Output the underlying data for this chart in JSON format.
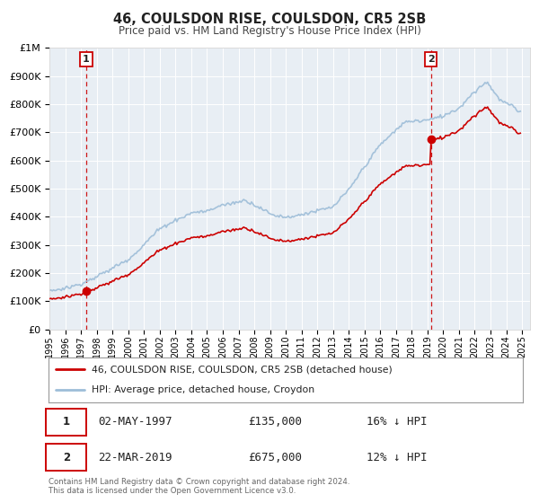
{
  "title": "46, COULSDON RISE, COULSDON, CR5 2SB",
  "subtitle": "Price paid vs. HM Land Registry's House Price Index (HPI)",
  "legend_line1": "46, COULSDON RISE, COULSDON, CR5 2SB (detached house)",
  "legend_line2": "HPI: Average price, detached house, Croydon",
  "sale1_label": "1",
  "sale1_date": "02-MAY-1997",
  "sale1_price": 135000,
  "sale1_hpi_text": "16% ↓ HPI",
  "sale1_year": 1997.33,
  "sale2_label": "2",
  "sale2_date": "22-MAR-2019",
  "sale2_price": 675000,
  "sale2_hpi_text": "12% ↓ HPI",
  "sale2_year": 2019.22,
  "footnote1": "Contains HM Land Registry data © Crown copyright and database right 2024.",
  "footnote2": "This data is licensed under the Open Government Licence v3.0.",
  "price_color": "#cc0000",
  "hpi_color": "#9dbdd8",
  "marker_color": "#cc0000",
  "vline_color": "#cc0000",
  "plot_bg_color": "#e8eef4",
  "grid_color": "#ffffff",
  "ylim": [
    0,
    1000000
  ],
  "xlim_start": 1995.0,
  "xlim_end": 2025.5
}
